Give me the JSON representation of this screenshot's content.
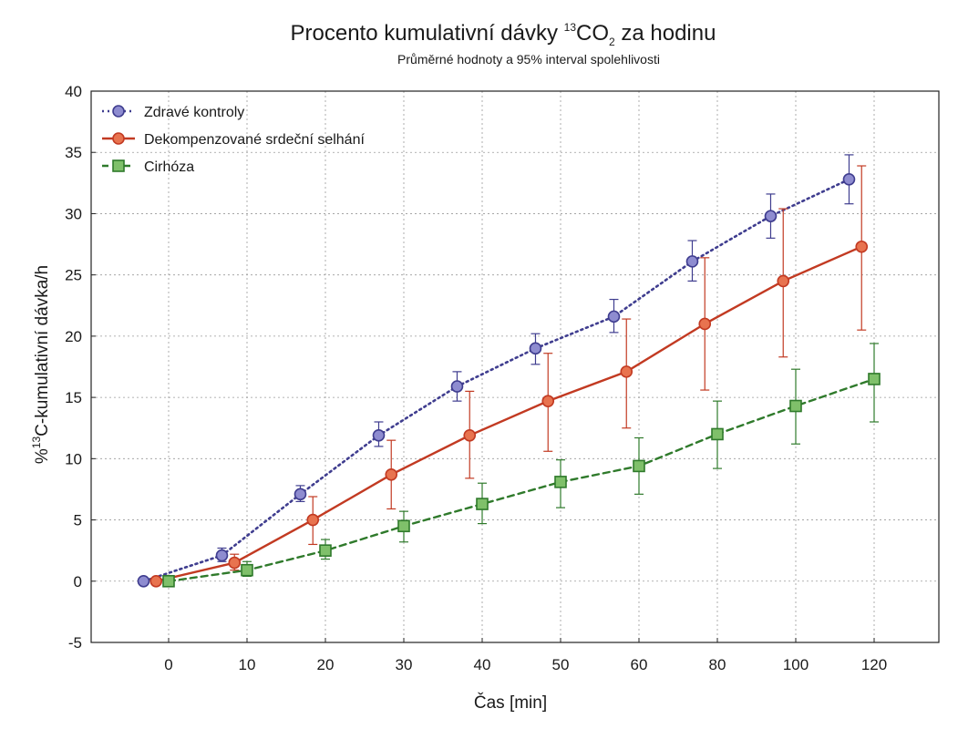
{
  "chart_data": {
    "type": "line",
    "title": {
      "pre": "Procento kumulativní dávky ",
      "sup": "13",
      "mid": "CO",
      "sub": "2",
      "post": " za hodinu"
    },
    "subtitle": "Průměrné hodnoty a 95% interval spolehlivosti",
    "xlabel": "Čas [min]",
    "ylabel": {
      "pre": "%",
      "sup": "13",
      "post": "C-kumulativní dávka/h"
    },
    "x_ticks": [
      "0",
      "10",
      "20",
      "30",
      "40",
      "50",
      "60",
      "80",
      "100",
      "120"
    ],
    "y_ticks": [
      "-5",
      "0",
      "5",
      "10",
      "15",
      "20",
      "25",
      "30",
      "35",
      "40"
    ],
    "ylim": [
      -5,
      40
    ],
    "x_axis_note": "categorical spacing; 0,10,20,30,40,50,60,80,100,120 are equally spaced",
    "grid": true,
    "legend_position": "top-left",
    "series": [
      {
        "name": "Zdravé kontroly",
        "color": "#3f3d8f",
        "fill": "#8e8cd0",
        "marker": "circle",
        "line": "dotted",
        "offset": -0.32,
        "points": [
          {
            "x": 0,
            "y": 0,
            "lo": 0,
            "hi": 0
          },
          {
            "x": 10,
            "y": 2.1,
            "lo": 1.6,
            "hi": 2.7
          },
          {
            "x": 20,
            "y": 7.1,
            "lo": 6.5,
            "hi": 7.8
          },
          {
            "x": 30,
            "y": 11.9,
            "lo": 11.0,
            "hi": 13.0
          },
          {
            "x": 40,
            "y": 15.9,
            "lo": 14.7,
            "hi": 17.1
          },
          {
            "x": 50,
            "y": 19.0,
            "lo": 17.7,
            "hi": 20.2
          },
          {
            "x": 60,
            "y": 21.6,
            "lo": 20.3,
            "hi": 23.0
          },
          {
            "x": 80,
            "y": 26.1,
            "lo": 24.5,
            "hi": 27.8
          },
          {
            "x": 100,
            "y": 29.8,
            "lo": 28.0,
            "hi": 31.6
          },
          {
            "x": 120,
            "y": 32.8,
            "lo": 30.8,
            "hi": 34.8
          }
        ]
      },
      {
        "name": "Dekompenzované srdeční selhání",
        "color": "#c23a22",
        "fill": "#e8734f",
        "marker": "circle",
        "line": "solid",
        "offset": -0.16,
        "points": [
          {
            "x": 0,
            "y": 0,
            "lo": 0,
            "hi": 0
          },
          {
            "x": 10,
            "y": 1.5,
            "lo": 0.9,
            "hi": 2.2
          },
          {
            "x": 20,
            "y": 5.0,
            "lo": 3.0,
            "hi": 6.9
          },
          {
            "x": 30,
            "y": 8.7,
            "lo": 5.9,
            "hi": 11.5
          },
          {
            "x": 40,
            "y": 11.9,
            "lo": 8.4,
            "hi": 15.5
          },
          {
            "x": 50,
            "y": 14.7,
            "lo": 10.6,
            "hi": 18.6
          },
          {
            "x": 60,
            "y": 17.1,
            "lo": 12.5,
            "hi": 21.4
          },
          {
            "x": 80,
            "y": 21.0,
            "lo": 15.6,
            "hi": 26.4
          },
          {
            "x": 100,
            "y": 24.5,
            "lo": 18.3,
            "hi": 30.4
          },
          {
            "x": 120,
            "y": 27.3,
            "lo": 20.5,
            "hi": 33.9
          }
        ]
      },
      {
        "name": "Cirhóza",
        "color": "#2f7a2b",
        "fill": "#7fc06a",
        "marker": "square",
        "line": "dashed",
        "offset": 0,
        "points": [
          {
            "x": 0,
            "y": 0,
            "lo": 0,
            "hi": 0
          },
          {
            "x": 10,
            "y": 0.9,
            "lo": 0.4,
            "hi": 1.6
          },
          {
            "x": 20,
            "y": 2.5,
            "lo": 1.8,
            "hi": 3.4
          },
          {
            "x": 30,
            "y": 4.5,
            "lo": 3.2,
            "hi": 5.7
          },
          {
            "x": 40,
            "y": 6.3,
            "lo": 4.7,
            "hi": 8.0
          },
          {
            "x": 50,
            "y": 8.1,
            "lo": 6.0,
            "hi": 9.9
          },
          {
            "x": 60,
            "y": 9.4,
            "lo": 7.1,
            "hi": 11.7
          },
          {
            "x": 80,
            "y": 12.0,
            "lo": 9.2,
            "hi": 14.7
          },
          {
            "x": 100,
            "y": 14.3,
            "lo": 11.2,
            "hi": 17.3
          },
          {
            "x": 120,
            "y": 16.5,
            "lo": 13.0,
            "hi": 19.4
          }
        ]
      }
    ]
  }
}
